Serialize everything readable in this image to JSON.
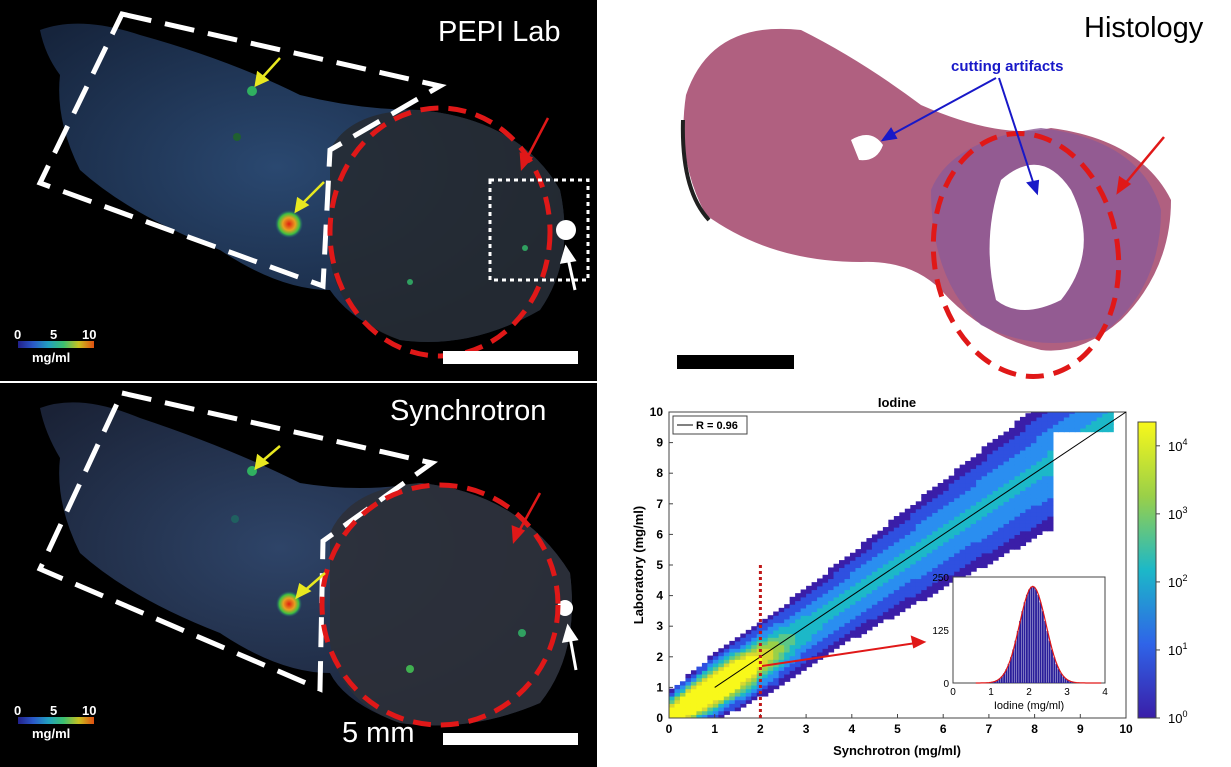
{
  "panels": {
    "pepi": {
      "title": "PEPI Lab"
    },
    "sync": {
      "title": "Synchrotron",
      "scalebar_label": "5 mm"
    },
    "histo": {
      "title": "Histology",
      "annotation": "cutting artifacts"
    }
  },
  "colorbar": {
    "ticks": [
      "0",
      "5",
      "10"
    ],
    "unit": "mg/ml"
  },
  "colors": {
    "dashed_box": "#ffffff",
    "red_circle": "#e01818",
    "arrow_yellow": "#e8e820",
    "arrow_blue": "#1818c8",
    "tissue_pink": "#b06080"
  },
  "chart_data": {
    "type": "heatmap",
    "title": "Iodine",
    "xlabel": "Synchrotron (mg/ml)",
    "ylabel": "Laboratory (mg/ml)",
    "xlim": [
      0,
      10
    ],
    "ylim": [
      0,
      10
    ],
    "xticks": [
      "0",
      "1",
      "2",
      "3",
      "4",
      "5",
      "6",
      "7",
      "8",
      "9",
      "10"
    ],
    "yticks": [
      "0",
      "1",
      "2",
      "3",
      "4",
      "5",
      "6",
      "7",
      "8",
      "9",
      "10"
    ],
    "legend": {
      "label": "R = 0.96",
      "position": "top-left"
    },
    "fit_line": {
      "x": [
        1,
        10
      ],
      "y": [
        1,
        10
      ]
    },
    "threshold_x": 2,
    "colorbar": {
      "scale": "log",
      "ticks": [
        "10^0",
        "10^1",
        "10^2",
        "10^3",
        "10^4"
      ]
    },
    "inset": {
      "type": "histogram",
      "xlabel": "Iodine (mg/ml)",
      "xticks": [
        "0",
        "1",
        "2",
        "3",
        "4"
      ],
      "yticks": [
        "0",
        "125",
        "250"
      ],
      "xlim": [
        0,
        4
      ],
      "ylim": [
        0,
        250
      ],
      "peak_x": 2.1,
      "peak_y": 228,
      "sigma": 0.35
    }
  }
}
